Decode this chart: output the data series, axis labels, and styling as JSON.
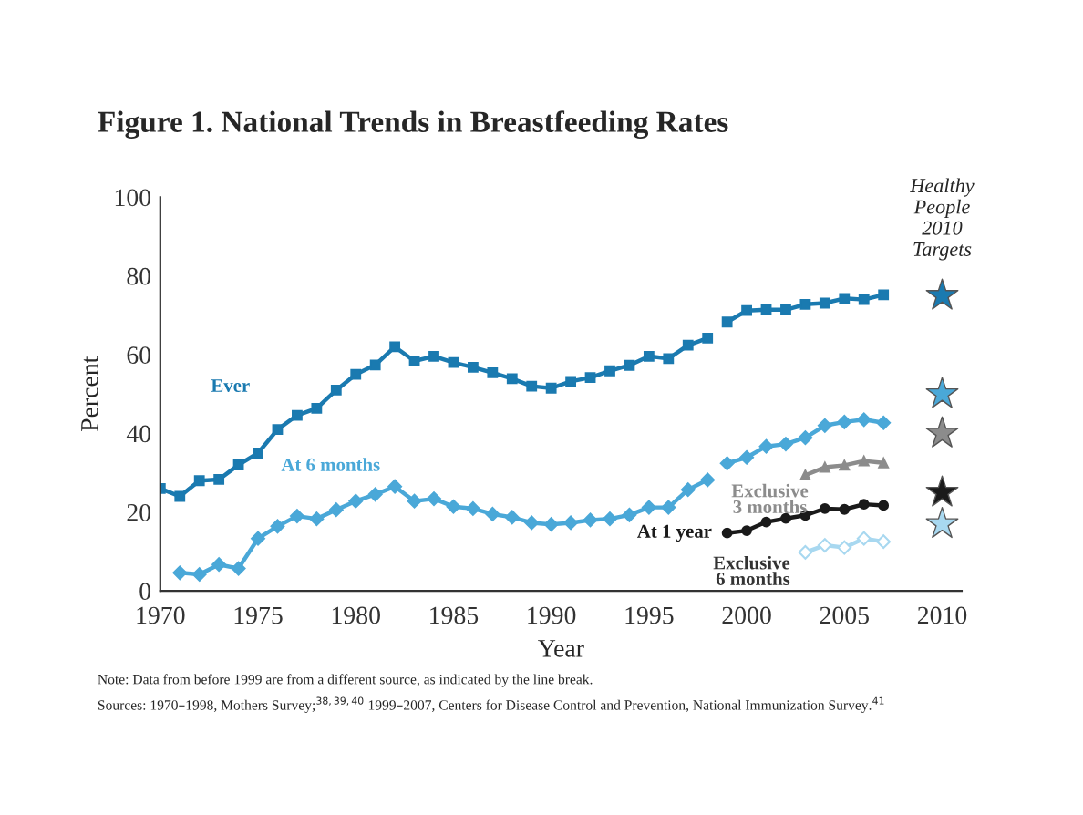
{
  "chart_data": {
    "type": "line",
    "title": "Figure 1. National Trends in Breastfeeding Rates",
    "xlabel": "Year",
    "ylabel": "Percent",
    "xlim": [
      1970,
      2011
    ],
    "xticks": [
      1970,
      1975,
      1980,
      1985,
      1990,
      1995,
      2000,
      2005,
      2010
    ],
    "ylim": [
      0,
      100
    ],
    "yticks": [
      0,
      20,
      40,
      60,
      80,
      100
    ],
    "grid": false,
    "legend": false,
    "series": [
      {
        "name": "Ever",
        "color": "#1a7ab0",
        "marker": "square",
        "x": [
          1970,
          1971,
          1972,
          1973,
          1974,
          1975,
          1976,
          1977,
          1978,
          1979,
          1980,
          1981,
          1982,
          1983,
          1984,
          1985,
          1986,
          1987,
          1988,
          1989,
          1990,
          1991,
          1992,
          1993,
          1994,
          1995,
          1996,
          1997,
          1998
        ],
        "values": [
          26,
          24,
          28,
          28.3,
          32,
          35,
          41,
          44.6,
          46.4,
          51,
          55,
          57.4,
          62,
          58.4,
          59.6,
          58,
          56.8,
          55.4,
          53.9,
          52,
          51.5,
          53.2,
          54.2,
          55.9,
          57.3,
          59.6,
          59,
          62.4,
          64.2
        ]
      },
      {
        "color": "#1a7ab0",
        "marker": "square",
        "x": [
          1999,
          2000,
          2001,
          2002,
          2003,
          2004,
          2005,
          2006,
          2007
        ],
        "values": [
          68.3,
          71.2,
          71.4,
          71.4,
          72.8,
          73.1,
          74.3,
          74,
          75.2
        ]
      },
      {
        "name": "At 6 months",
        "color": "#4aa8d8",
        "marker": "diamond",
        "x": [
          1971,
          1972,
          1973,
          1974,
          1975,
          1976,
          1977,
          1978,
          1979,
          1980,
          1981,
          1982,
          1983,
          1984,
          1985,
          1986,
          1987,
          1988,
          1989,
          1990,
          1991,
          1992,
          1993,
          1994,
          1995,
          1996,
          1997,
          1998
        ],
        "values": [
          4.6,
          4.2,
          6.7,
          5.7,
          13.3,
          16.4,
          19,
          18.3,
          20.6,
          22.8,
          24.5,
          26.5,
          22.8,
          23.4,
          21.4,
          20.9,
          19.5,
          18.7,
          17.3,
          16.9,
          17.3,
          18,
          18.3,
          19.3,
          21.2,
          21.2,
          25.7,
          28.2
        ]
      },
      {
        "color": "#4aa8d8",
        "marker": "diamond",
        "x": [
          1999,
          2000,
          2001,
          2002,
          2003,
          2004,
          2005,
          2006,
          2007
        ],
        "values": [
          32.4,
          33.9,
          36.7,
          37.3,
          38.9,
          42,
          42.9,
          43.5,
          42.7
        ]
      },
      {
        "name": "Exclusive\n3 months",
        "color": "#8c8c8c",
        "marker": "triangle",
        "x": [
          2003,
          2004,
          2005,
          2006,
          2007
        ],
        "values": [
          29.4,
          31.4,
          31.9,
          33,
          32.5
        ]
      },
      {
        "name": "At 1 year",
        "color": "#1a1a1a",
        "marker": "circle",
        "x": [
          1999,
          2000,
          2001,
          2002,
          2003,
          2004,
          2005,
          2006,
          2007
        ],
        "values": [
          14.7,
          15.3,
          17.5,
          18.4,
          19.2,
          20.9,
          20.7,
          22,
          21.7
        ]
      },
      {
        "name": "Exclusive\n6 months",
        "color": "#a8d8f0",
        "marker": "diamond",
        "x": [
          2003,
          2004,
          2005,
          2006,
          2007
        ],
        "values": [
          9.8,
          11.6,
          11,
          13.3,
          12.5
        ]
      },
      {
        "name": "Healthy\nPeople\n2010\nTargets",
        "type": "scatter",
        "marker": "star",
        "x": [
          2010,
          2010,
          2010,
          2010,
          2010
        ],
        "values": [
          75,
          50,
          40,
          25,
          17
        ],
        "colors": [
          "#1a7ab0",
          "#4aa8d8",
          "#8c8c8c",
          "#1a1a1a",
          "#a8d8f0"
        ]
      }
    ],
    "annotations": [
      "Note: Data from before 1999 are from a different source, as indicated by the line break.",
      "Sources: 1970–1998, Mothers Survey;$^{38,39,40}$ 1999–2007, Centers for Disease Control and Prevention, National Immunization Survey.$^{41}$"
    ]
  }
}
